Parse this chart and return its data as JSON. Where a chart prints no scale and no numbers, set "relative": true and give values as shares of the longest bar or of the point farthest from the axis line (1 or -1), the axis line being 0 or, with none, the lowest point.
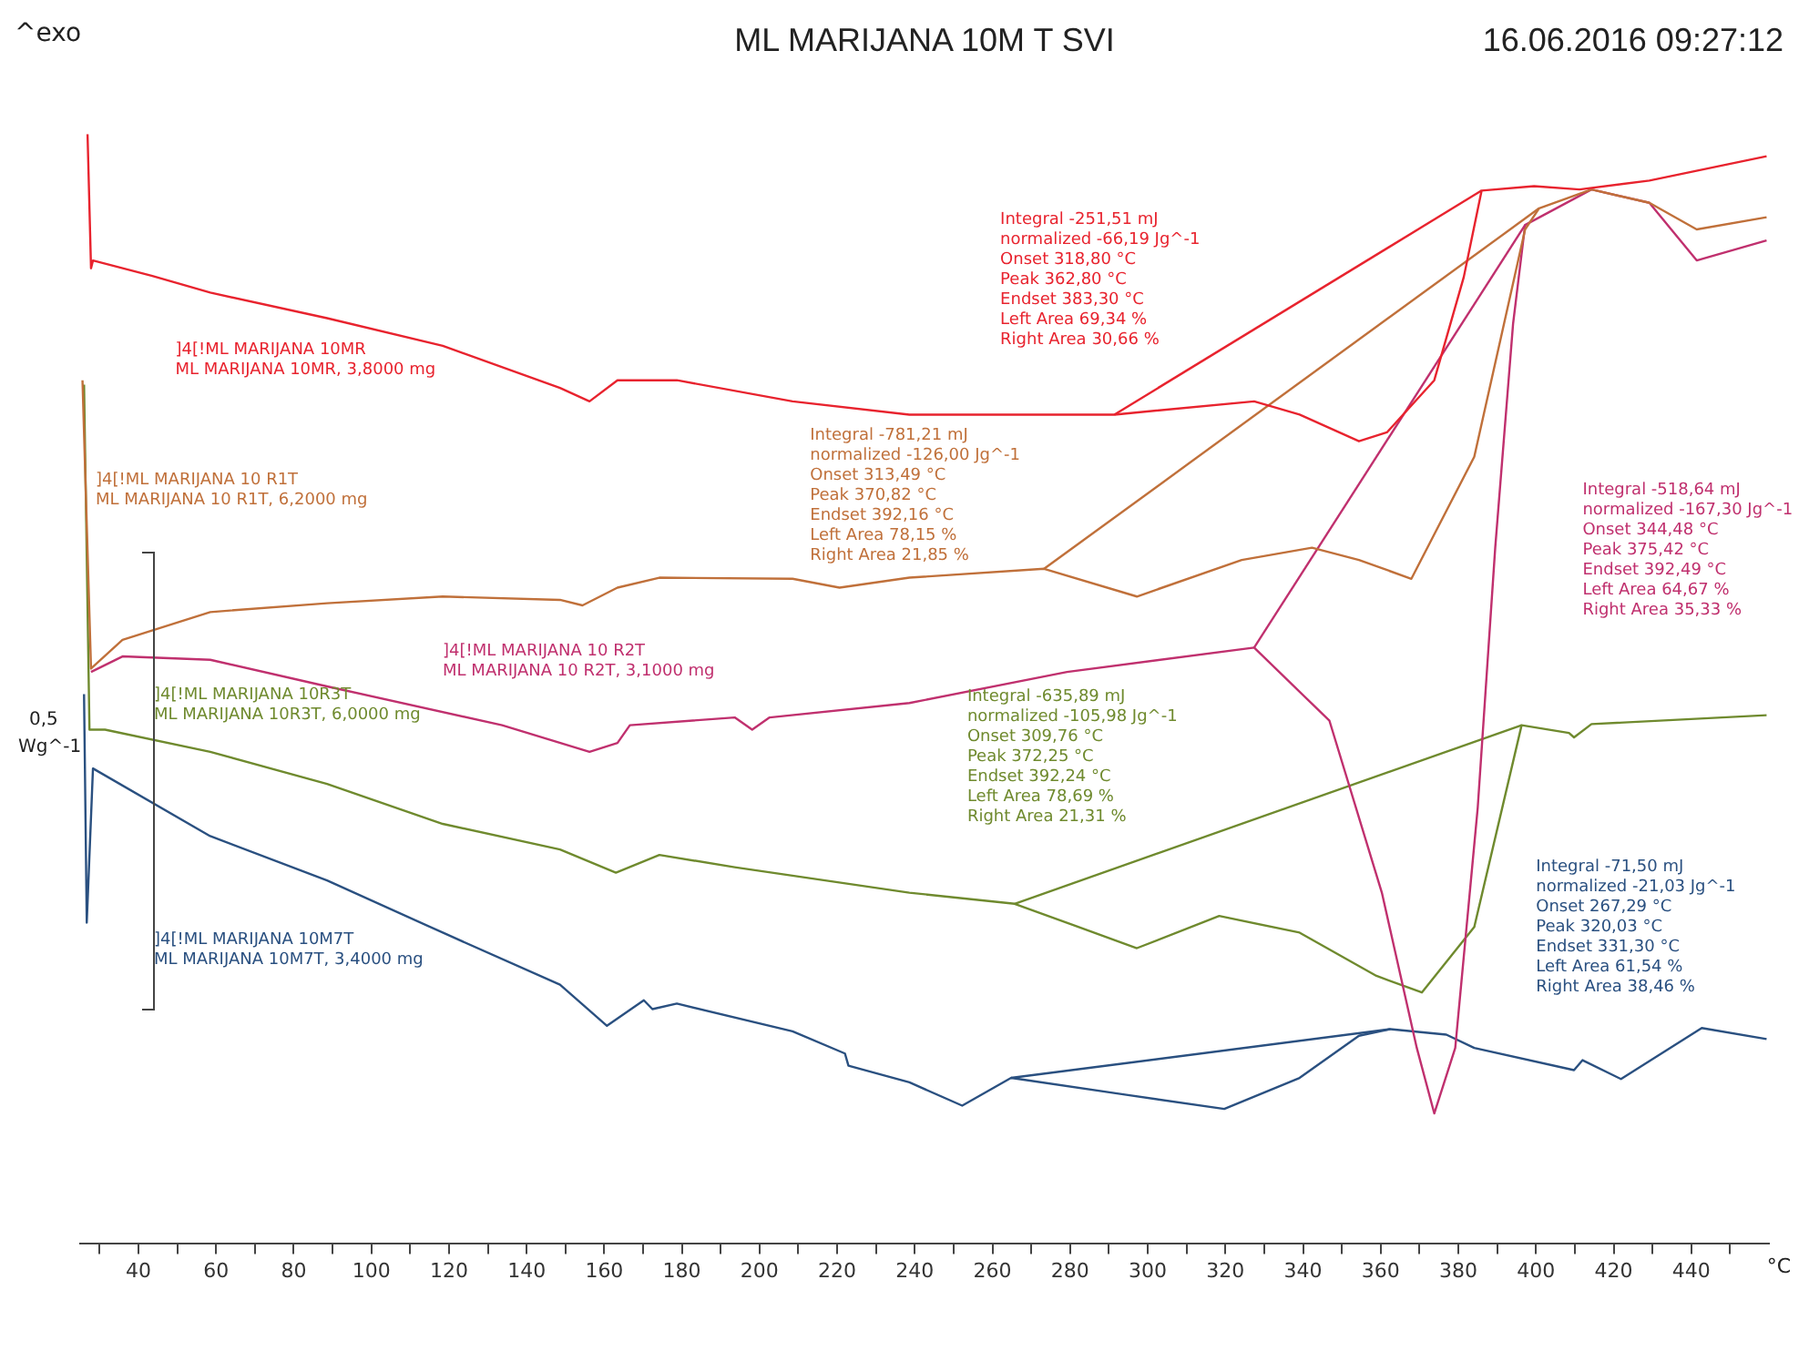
{
  "chart_data": {
    "type": "line",
    "title": "ML MARIJANA 10M T SVI",
    "subtitle": "16.06.2016 09:27:12",
    "xlabel": "°C",
    "relative": true,
    "legend": false,
    "grid": false,
    "marker": "none",
    "line_style": "solid",
    "xlim": [
      25,
      460
    ],
    "xticks": [
      {
        "value": 30,
        "label": null
      },
      40,
      {
        "value": 50,
        "label": null
      },
      60,
      {
        "value": 70,
        "label": null
      },
      80,
      {
        "value": 90,
        "label": null
      },
      100,
      {
        "value": 110,
        "label": null
      },
      120,
      {
        "value": 130,
        "label": null
      },
      140,
      {
        "value": 150,
        "label": null
      },
      160,
      {
        "value": 170,
        "label": null
      },
      180,
      {
        "value": 190,
        "label": null
      },
      200,
      {
        "value": 210,
        "label": null
      },
      220,
      {
        "value": 230,
        "label": null
      },
      240,
      {
        "value": 250,
        "label": null
      },
      260,
      {
        "value": 270,
        "label": null
      },
      280,
      {
        "value": 290,
        "label": null
      },
      300,
      {
        "value": 310,
        "label": null
      },
      320,
      {
        "value": 330,
        "label": null
      },
      340,
      {
        "value": 350,
        "label": null
      },
      360,
      {
        "value": 370,
        "label": null
      },
      380,
      {
        "value": 390,
        "label": null
      },
      400,
      {
        "value": 410,
        "label": null
      },
      420,
      {
        "value": 430,
        "label": null
      },
      440,
      {
        "value": 450,
        "label": null
      }
    ],
    "series": [
      {
        "name": "]4[!ML MARIJANA 10MR\nML MARIJANA 10MR, 3,8000 mg",
        "color": "#e8232e",
        "x": [
          26.9,
          27.8,
          28.3,
          43.6,
          58.5,
          88.6,
          118.4,
          148.6,
          156.2,
          163.4,
          178.7,
          208.5,
          238.6,
          291.4,
          327.4,
          339.1,
          354.4,
          361.6,
          373.8,
          381.4,
          386.0,
          399.5,
          411.2,
          429.2,
          459.4
        ],
        "values": [
          1.0,
          0.879,
          0.886,
          0.872,
          0.857,
          0.834,
          0.809,
          0.771,
          0.759,
          0.778,
          0.778,
          0.759,
          0.747,
          0.747,
          0.759,
          0.747,
          0.723,
          0.731,
          0.778,
          0.871,
          0.949,
          0.953,
          0.95,
          0.958,
          0.98
        ]
      },
      {
        "type": "line",
        "color": "#e8232e",
        "x": [
          291.4,
          386.0
        ],
        "values": [
          0.747,
          0.949
        ]
      },
      {
        "name": "]4[!ML MARIJANA 10 R1T\nML MARIJANA 10 R1T, 6,2000 mg",
        "color": "#c0703a",
        "x": [
          25.6,
          27.8,
          35.9,
          58.5,
          88.6,
          118.4,
          148.6,
          154.4,
          163.4,
          174.2,
          208.5,
          220.6,
          238.6,
          273.3,
          297.2,
          324.2,
          342.3,
          354.4,
          367.9,
          384.1,
          397.2,
          400.8,
          414.3,
          429.2,
          441.4,
          459.4
        ],
        "values": [
          0.778,
          0.518,
          0.544,
          0.569,
          0.577,
          0.583,
          0.58,
          0.575,
          0.591,
          0.6,
          0.599,
          0.591,
          0.6,
          0.608,
          0.583,
          0.616,
          0.627,
          0.616,
          0.599,
          0.709,
          0.914,
          0.933,
          0.95,
          0.938,
          0.914,
          0.925
        ]
      },
      {
        "type": "line",
        "color": "#c0703a",
        "x": [
          273.3,
          400.8
        ],
        "values": [
          0.608,
          0.933
        ]
      },
      {
        "name": "]4[!ML MARIJANA 10 R2T\nML MARIJANA 10 R2T, 3,1000 mg",
        "color": "#c0306e",
        "x": [
          27.8,
          35.9,
          58.5,
          88.6,
          133.7,
          156.2,
          163.4,
          166.6,
          193.6,
          198.1,
          202.6,
          238.6,
          279.2,
          327.4,
          346.8,
          360.3,
          369.3,
          373.8,
          379.2,
          385.0,
          389.5,
          394.1,
          397.2,
          414.3,
          429.2,
          441.4,
          459.4
        ],
        "values": [
          0.515,
          0.529,
          0.526,
          0.502,
          0.467,
          0.443,
          0.451,
          0.467,
          0.474,
          0.463,
          0.474,
          0.487,
          0.515,
          0.537,
          0.471,
          0.316,
          0.176,
          0.117,
          0.176,
          0.393,
          0.627,
          0.829,
          0.918,
          0.95,
          0.938,
          0.886,
          0.904
        ]
      },
      {
        "type": "line",
        "color": "#c0306e",
        "x": [
          327.4,
          397.2
        ],
        "values": [
          0.537,
          0.918
        ]
      },
      {
        "name": "]4[!ML MARIJANA 10R3T\nML MARIJANA 10R3T, 6,0000 mg",
        "color": "#6f8a2e",
        "x": [
          26.0,
          27.4,
          31.4,
          58.5,
          88.6,
          118.4,
          148.6,
          163.0,
          174.2,
          193.6,
          238.6,
          265.7,
          297.2,
          318.4,
          339.1,
          358.9,
          370.6,
          384.1,
          396.3,
          408.5,
          409.8,
          414.3,
          459.4
        ],
        "values": [
          0.774,
          0.463,
          0.463,
          0.443,
          0.414,
          0.378,
          0.355,
          0.334,
          0.35,
          0.339,
          0.316,
          0.306,
          0.266,
          0.295,
          0.28,
          0.241,
          0.226,
          0.285,
          0.467,
          0.46,
          0.456,
          0.468,
          0.476
        ]
      },
      {
        "type": "line",
        "color": "#6f8a2e",
        "x": [
          265.7,
          396.3
        ],
        "values": [
          0.306,
          0.467
        ]
      },
      {
        "name": "]4[!ML MARIJANA 10M7T\nML MARIJANA 10M7T, 3,4000 mg",
        "color": "#2a5080",
        "x": [
          26.0,
          26.7,
          28.3,
          58.5,
          88.6,
          118.4,
          148.6,
          160.7,
          170.2,
          172.4,
          178.7,
          208.5,
          222.0,
          222.9,
          238.6,
          252.2,
          264.8,
          294.1,
          319.7,
          339.1,
          354.4,
          362.5,
          376.9,
          384.1,
          409.8,
          412.0,
          421.9,
          442.7,
          459.4
        ],
        "values": [
          0.495,
          0.289,
          0.428,
          0.367,
          0.327,
          0.28,
          0.233,
          0.196,
          0.219,
          0.211,
          0.216,
          0.191,
          0.171,
          0.16,
          0.145,
          0.124,
          0.149,
          0.134,
          0.121,
          0.149,
          0.187,
          0.193,
          0.188,
          0.176,
          0.156,
          0.165,
          0.148,
          0.194,
          0.184
        ]
      },
      {
        "type": "line",
        "color": "#2a5080",
        "x": [
          264.8,
          362.5
        ],
        "values": [
          0.149,
          0.193
        ]
      }
    ],
    "annotations": [
      "Integral -251,51 mJ\nnormalized -66,19 Jg^-1\nOnset 318,80 °C\nPeak 362,80 °C\nEndset 383,30 °C\nLeft Area 69,34 %\nRight Area 30,66 %",
      "Integral -781,21 mJ\nnormalized -126,00 Jg^-1\nOnset 313,49 °C\nPeak 370,82 °C\nEndset 392,16 °C\nLeft Area 78,15 %\nRight Area 21,85 %",
      "Integral -518,64 mJ\nnormalized -167,30 Jg^-1\nOnset 344,48 °C\nPeak 375,42 °C\nEndset 392,49 °C\nLeft Area 64,67 %\nRight Area 35,33 %",
      "Integral -635,89 mJ\nnormalized -105,98 Jg^-1\nOnset 309,76 °C\nPeak 372,25 °C\nEndset 392,24 °C\nLeft Area 78,69 %\nRight Area 21,31 %",
      "Integral -71,50 mJ\nnormalized -21,03 Jg^-1\nOnset 267,29 °C\nPeak 320,03 °C\nEndset 331,30 °C\nLeft Area 61,54 %\nRight Area 38,46 %",
      "^exo",
      "0,5",
      "Wg^-1"
    ]
  }
}
